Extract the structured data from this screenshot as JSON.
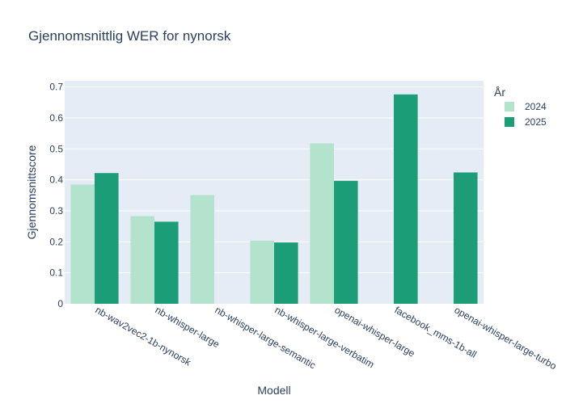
{
  "chart_data": {
    "type": "bar",
    "title": "Gjennomsnittlig WER for nynorsk",
    "xlabel": "Modell",
    "ylabel": "Gjennomsnittscore",
    "ylim": [
      0,
      0.72
    ],
    "yticks": [
      "0",
      "0.1",
      "0.2",
      "0.3",
      "0.4",
      "0.5",
      "0.6",
      "0.7"
    ],
    "categories": [
      "nb-wav2vec2-1b-nynorsk",
      "nb-whisper-large",
      "nb-whisper-large-semantic",
      "nb-whisper-large-verbatim",
      "openai-whisper-large",
      "facebook_mms-1b-all",
      "openai-whisper-large-turbo"
    ],
    "legend_title": "År",
    "legend_position": "top-right",
    "grid": true,
    "series": [
      {
        "name": "2024",
        "color": "#b3e2cd",
        "values": [
          0.385,
          0.283,
          0.351,
          0.204,
          0.518,
          null,
          null
        ]
      },
      {
        "name": "2025",
        "color": "#1b9e77",
        "values": [
          0.422,
          0.265,
          null,
          0.198,
          0.397,
          0.676,
          0.424
        ]
      }
    ]
  }
}
